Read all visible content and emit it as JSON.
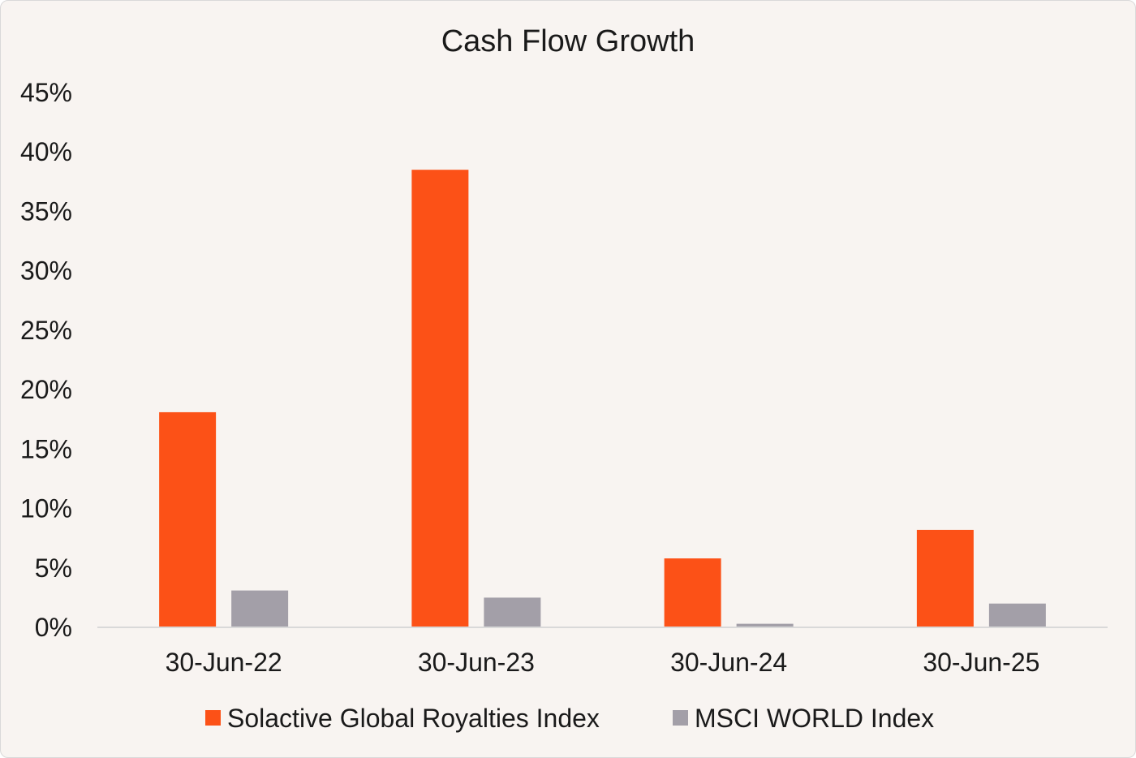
{
  "chart_data": {
    "type": "bar",
    "title": "Cash Flow Growth",
    "xlabel": "",
    "ylabel": "",
    "categories": [
      "30-Jun-22",
      "30-Jun-23",
      "30-Jun-24",
      "30-Jun-25"
    ],
    "series": [
      {
        "name": "Solactive Global Royalties Index",
        "values": [
          18.1,
          38.5,
          5.8,
          8.2
        ],
        "color": "#fc5117"
      },
      {
        "name": "MSCI WORLD Index",
        "values": [
          3.1,
          2.5,
          0.3,
          2.0
        ],
        "color": "#a39fa8"
      }
    ],
    "ylim": [
      0,
      45
    ],
    "yticks": [
      "0%",
      "5%",
      "10%",
      "15%",
      "20%",
      "25%",
      "30%",
      "35%",
      "40%",
      "45%"
    ],
    "grid": false,
    "legend_position": "bottom"
  },
  "colors": {
    "background": "#f8f4f1",
    "axis": "#d9d9d9",
    "text": "#1a1a1a"
  }
}
